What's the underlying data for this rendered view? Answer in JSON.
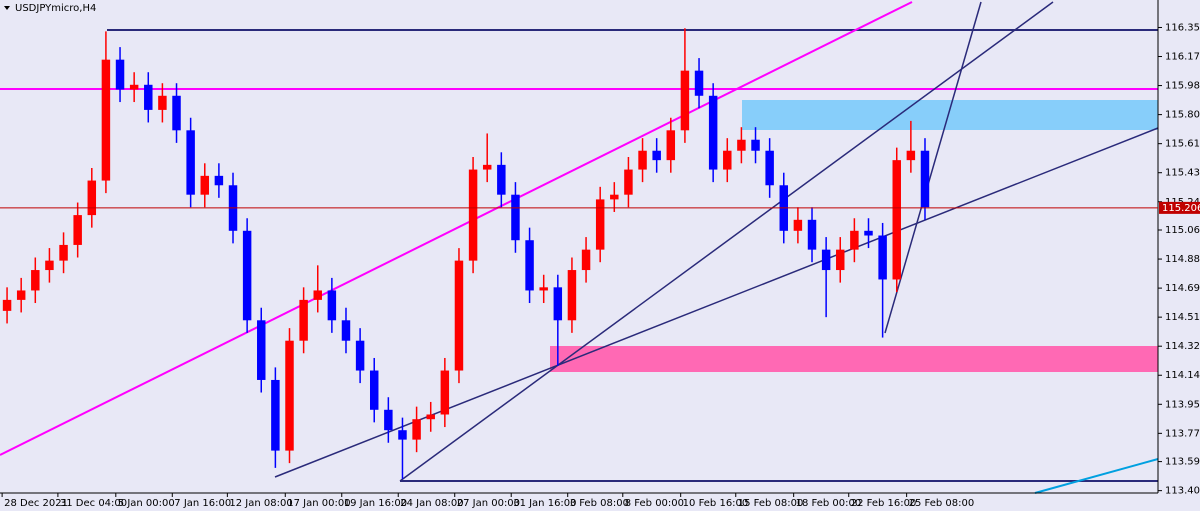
{
  "chart_data": {
    "type": "candlestick",
    "title": "USDJPYmicro,H4",
    "open": [
      114.55,
      114.62,
      114.68,
      114.81,
      114.87,
      114.97,
      115.16,
      115.38,
      116.15,
      115.96,
      115.99,
      115.83,
      115.92,
      115.7,
      115.29,
      115.41,
      115.35,
      115.06,
      114.49,
      114.11,
      113.66,
      114.36,
      114.62,
      114.68,
      114.49,
      114.36,
      114.17,
      113.92,
      113.79,
      113.73,
      113.86,
      113.89,
      114.17,
      114.87,
      115.45,
      115.48,
      115.29,
      115.0,
      114.68,
      114.7,
      114.49,
      114.81,
      114.94,
      115.26,
      115.29,
      115.45,
      115.57,
      115.51,
      115.7,
      116.08,
      115.92,
      115.45,
      115.57,
      115.64,
      115.57,
      115.35,
      115.06,
      115.13,
      114.94,
      114.81,
      114.94,
      115.06,
      115.03,
      114.75,
      115.51,
      115.57
    ],
    "high": [
      114.7,
      114.76,
      114.89,
      114.95,
      115.05,
      115.24,
      115.46,
      116.33,
      116.23,
      116.07,
      116.07,
      116.0,
      116.0,
      115.78,
      115.49,
      115.49,
      115.43,
      115.14,
      114.57,
      114.19,
      114.44,
      114.7,
      114.84,
      114.76,
      114.57,
      114.44,
      114.25,
      114.0,
      113.87,
      113.94,
      113.97,
      114.25,
      114.95,
      115.53,
      115.68,
      115.56,
      115.37,
      115.08,
      114.78,
      114.78,
      114.89,
      115.02,
      115.34,
      115.37,
      115.53,
      115.65,
      115.65,
      115.78,
      116.35,
      116.16,
      116.0,
      115.65,
      115.72,
      115.72,
      115.65,
      115.43,
      115.21,
      115.21,
      115.02,
      115.02,
      115.14,
      115.14,
      115.11,
      115.59,
      115.76,
      115.65
    ],
    "low": [
      114.47,
      114.54,
      114.6,
      114.73,
      114.79,
      114.89,
      115.08,
      115.3,
      115.88,
      115.88,
      115.75,
      115.75,
      115.62,
      115.21,
      115.21,
      115.27,
      114.98,
      114.41,
      114.03,
      113.55,
      113.58,
      114.28,
      114.54,
      114.41,
      114.28,
      114.09,
      113.84,
      113.71,
      113.48,
      113.65,
      113.78,
      113.81,
      114.09,
      114.79,
      115.37,
      115.21,
      114.92,
      114.6,
      114.6,
      114.2,
      114.41,
      114.73,
      114.86,
      115.18,
      115.21,
      115.37,
      115.43,
      115.43,
      115.62,
      115.84,
      115.37,
      115.37,
      115.49,
      115.49,
      115.27,
      114.98,
      114.98,
      114.86,
      114.51,
      114.73,
      114.86,
      114.95,
      114.38,
      114.67,
      115.43,
      115.13
    ],
    "close": [
      114.62,
      114.68,
      114.81,
      114.87,
      114.97,
      115.16,
      115.38,
      116.15,
      115.96,
      115.99,
      115.83,
      115.92,
      115.7,
      115.29,
      115.41,
      115.35,
      115.06,
      114.49,
      114.11,
      113.66,
      114.36,
      114.62,
      114.68,
      114.49,
      114.36,
      114.17,
      113.92,
      113.79,
      113.73,
      113.86,
      113.89,
      114.17,
      114.87,
      115.45,
      115.48,
      115.29,
      115.0,
      114.68,
      114.7,
      114.49,
      114.81,
      114.94,
      115.26,
      115.29,
      115.45,
      115.57,
      115.51,
      115.7,
      116.08,
      115.92,
      115.45,
      115.57,
      115.64,
      115.57,
      115.35,
      115.06,
      115.13,
      114.94,
      114.81,
      114.94,
      115.06,
      115.03,
      114.75,
      115.51,
      115.57,
      115.21
    ],
    "up_color": "#ff0000",
    "down_color": "#0000ff",
    "current_price": 115.206,
    "ylim": [
      113.39,
      116.53
    ],
    "yticks": [
      116.355,
      {
        "value": 116.17,
        "label": "116.170"
      },
      115.985,
      {
        "value": 115.8,
        "label": "115.800"
      },
      115.615,
      115.43,
      115.245,
      115.065,
      {
        "value": 114.88,
        "label": "114.880"
      },
      114.695,
      {
        "value": 114.51,
        "label": "114.510"
      },
      114.325,
      {
        "value": 114.14,
        "label": "114.140"
      },
      113.955,
      {
        "value": 113.77,
        "label": "113.770"
      },
      {
        "value": 113.59,
        "label": "113.590"
      },
      113.405
    ],
    "xlim": [
      0,
      82
    ],
    "xticks": [
      {
        "value": 0.15,
        "label": "28 Dec 2021"
      },
      {
        "value": 4.1,
        "label": "31 Dec 04:00"
      },
      {
        "value": 8.2,
        "label": "5 Jan 00:00"
      },
      {
        "value": 12.2,
        "label": "7 Jan 16:00"
      },
      {
        "value": 16.1,
        "label": "12 Jan 08:00"
      },
      {
        "value": 20.2,
        "label": "17 Jan 00:00"
      },
      {
        "value": 24.2,
        "label": "19 Jan 16:00"
      },
      {
        "value": 28.2,
        "label": "24 Jan 08:00"
      },
      {
        "value": 32.2,
        "label": "27 Jan 00:00"
      },
      {
        "value": 36.2,
        "label": "31 Jan 16:00"
      },
      {
        "value": 40.2,
        "label": "3 Feb 08:00"
      },
      {
        "value": 44.1,
        "label": "8 Feb 00:00"
      },
      {
        "value": 48.2,
        "label": "10 Feb 16:00"
      },
      {
        "value": 52.1,
        "label": "15 Feb 08:00"
      },
      {
        "value": 56.2,
        "label": "18 Feb 00:00"
      },
      {
        "value": 60.1,
        "label": "22 Feb 16:00"
      },
      {
        "value": 64.2,
        "label": "25 Feb 08:00"
      }
    ]
  }
}
